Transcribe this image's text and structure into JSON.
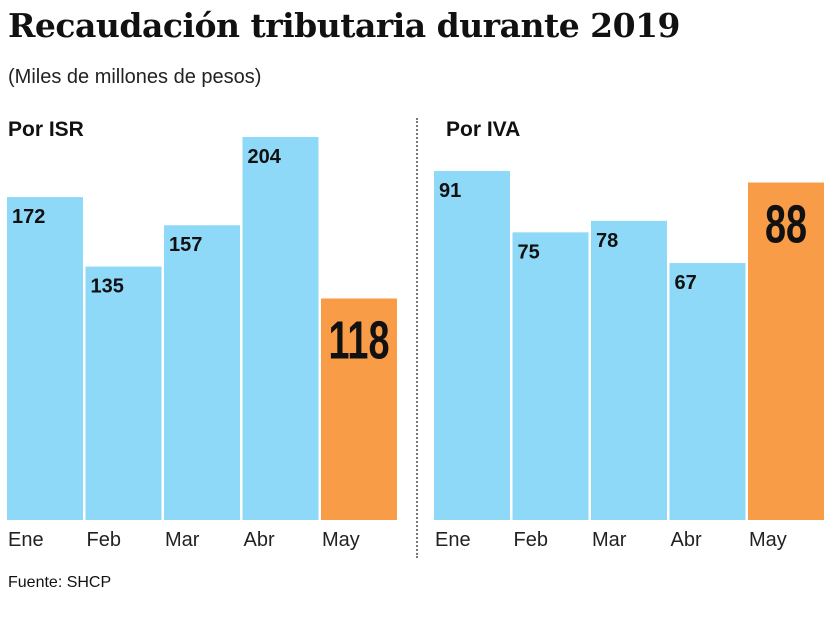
{
  "title": "Recaudación tributaria durante 2019",
  "subtitle": "(Miles de millones de pesos)",
  "source": "Fuente: SHCP",
  "colors": {
    "bar": "#8ed8f8",
    "highlight": "#f89c48",
    "text": "#111111"
  },
  "chart_data": [
    {
      "type": "bar",
      "title": "Por ISR",
      "categories": [
        "Ene",
        "Feb",
        "Mar",
        "Abr",
        "May"
      ],
      "values": [
        172,
        135,
        157,
        204,
        118
      ],
      "highlight_index": 4,
      "grid": false
    },
    {
      "type": "bar",
      "title": "Por IVA",
      "categories": [
        "Ene",
        "Feb",
        "Mar",
        "Abr",
        "May"
      ],
      "values": [
        91,
        75,
        78,
        67,
        88
      ],
      "highlight_index": 4,
      "grid": false
    }
  ]
}
